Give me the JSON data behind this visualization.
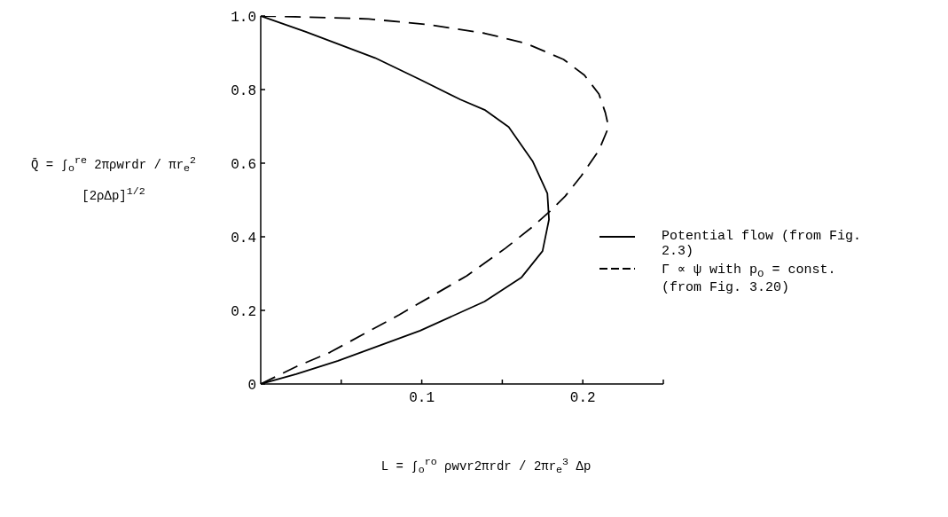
{
  "chart_data": {
    "type": "line",
    "xlabel": "L = ∫$_{o}$$^{ro}$ ρwvr2πrdr / 2πr$_{e}$$^{3}$ Δp",
    "ylabel": "Q̄ = ∫$_{o}$$^{re}$ 2πρwrdr / πr$_{e}$$^{2}$ [2ρΔp]$^{1/2}$",
    "xlim": [
      0,
      0.25
    ],
    "ylim": [
      0,
      1
    ],
    "xticks": [
      {
        "value": 0.05,
        "label": null
      },
      0.1,
      {
        "value": 0.15,
        "label": null
      },
      0.2,
      {
        "value": 0.25,
        "label": null
      }
    ],
    "yticks": [
      0,
      0.2,
      0.4,
      0.6,
      0.8,
      {
        "value": 1,
        "label": "1.0"
      }
    ],
    "grid": false,
    "legend": "right",
    "marker": "none",
    "series": [
      {
        "name": "Potential flow (from Fig. 2.3)",
        "color": "#000000",
        "line_style": "solid",
        "x": [
          0,
          0.022,
          0.048,
          0.099,
          0.139,
          0.162,
          0.175,
          0.179,
          0.178,
          0.169,
          0.154,
          0.139,
          0.124,
          0.099,
          0.071,
          0.028,
          0
        ],
        "values": [
          0,
          0.027,
          0.063,
          0.145,
          0.224,
          0.29,
          0.361,
          0.447,
          0.518,
          0.604,
          0.698,
          0.745,
          0.773,
          0.827,
          0.886,
          0.957,
          1
        ]
      },
      {
        "name": "Γ ∝ ψ with p$_{o}$ = const. (from Fig. 3.20)",
        "color": "#000000",
        "line_style": "dashed",
        "x": [
          0,
          0.022,
          0.043,
          0.086,
          0.128,
          0.152,
          0.169,
          0.18,
          0.189,
          0.199,
          0.21,
          0.216,
          0.214,
          0.21,
          0.201,
          0.188,
          0.165,
          0.139,
          0.105,
          0.067,
          0.02,
          0
        ],
        "values": [
          0,
          0.047,
          0.086,
          0.188,
          0.294,
          0.369,
          0.428,
          0.471,
          0.51,
          0.565,
          0.635,
          0.698,
          0.737,
          0.788,
          0.839,
          0.882,
          0.925,
          0.953,
          0.976,
          0.992,
          0.998,
          1
        ]
      }
    ]
  }
}
